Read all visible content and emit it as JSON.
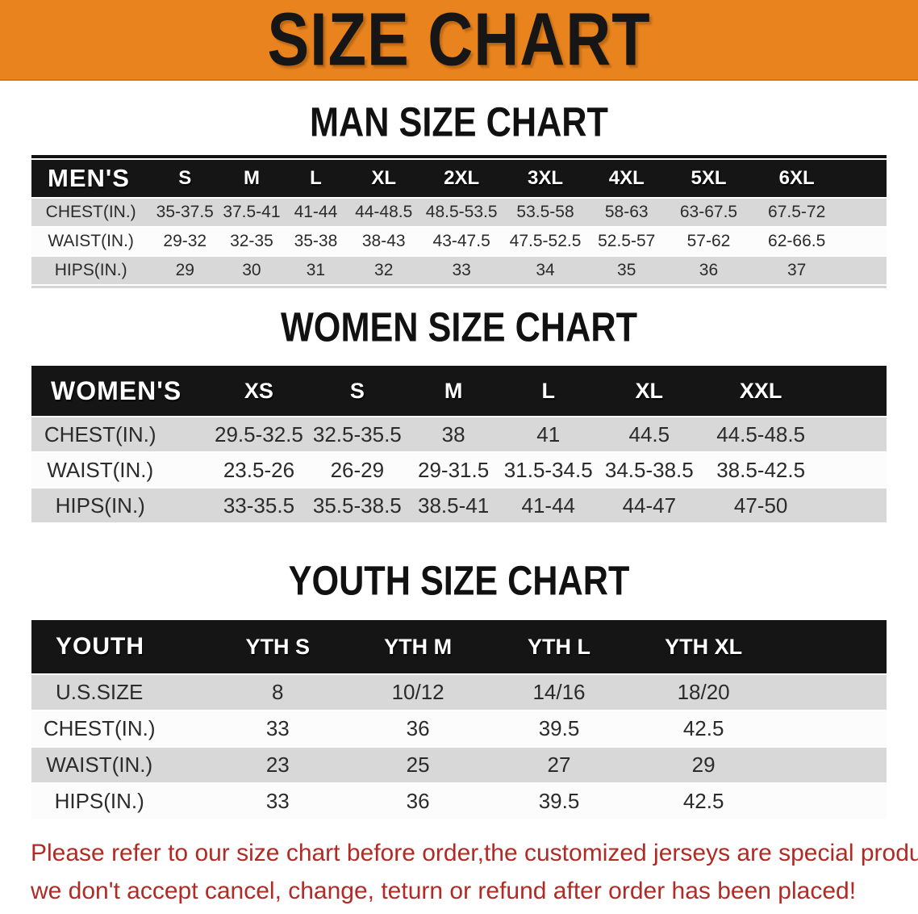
{
  "banner": {
    "title": "SIZE CHART",
    "bg_color": "#E8831E",
    "text_color": "#161616"
  },
  "chart_data": [
    {
      "type": "table",
      "title": "MAN SIZE CHART",
      "header_label": "MEN'S",
      "columns": [
        "S",
        "M",
        "L",
        "XL",
        "2XL",
        "3XL",
        "4XL",
        "5XL",
        "6XL"
      ],
      "rows": [
        {
          "label": "CHEST(IN.)",
          "values": [
            "35-37.5",
            "37.5-41",
            "41-44",
            "44-48.5",
            "48.5-53.5",
            "53.5-58",
            "58-63",
            "63-67.5",
            "67.5-72"
          ]
        },
        {
          "label": "WAIST(IN.)",
          "values": [
            "29-32",
            "32-35",
            "35-38",
            "38-43",
            "43-47.5",
            "47.5-52.5",
            "52.5-57",
            "57-62",
            "62-66.5"
          ]
        },
        {
          "label": "HIPS(IN.)",
          "values": [
            "29",
            "30",
            "31",
            "32",
            "33",
            "34",
            "35",
            "36",
            "37"
          ]
        }
      ]
    },
    {
      "type": "table",
      "title": "WOMEN SIZE CHART",
      "header_label": "WOMEN'S",
      "columns": [
        "XS",
        "S",
        "M",
        "L",
        "XL",
        "XXL"
      ],
      "rows": [
        {
          "label": "CHEST(IN.)",
          "values": [
            "29.5-32.5",
            "32.5-35.5",
            "38",
            "41",
            "44.5",
            "44.5-48.5"
          ]
        },
        {
          "label": "WAIST(IN.)",
          "values": [
            "23.5-26",
            "26-29",
            "29-31.5",
            "31.5-34.5",
            "34.5-38.5",
            "38.5-42.5"
          ]
        },
        {
          "label": "HIPS(IN.)",
          "values": [
            "33-35.5",
            "35.5-38.5",
            "38.5-41",
            "41-44",
            "44-47",
            "47-50"
          ]
        }
      ]
    },
    {
      "type": "table",
      "title": "YOUTH SIZE CHART",
      "header_label": "YOUTH",
      "columns": [
        "YTH S",
        "YTH M",
        "YTH L",
        "YTH XL"
      ],
      "rows": [
        {
          "label": "U.S.SIZE",
          "values": [
            "8",
            "10/12",
            "14/16",
            "18/20"
          ]
        },
        {
          "label": "CHEST(IN.)",
          "values": [
            "33",
            "36",
            "39.5",
            "42.5"
          ]
        },
        {
          "label": "WAIST(IN.)",
          "values": [
            "23",
            "25",
            "27",
            "29"
          ]
        },
        {
          "label": "HIPS(IN.)",
          "values": [
            "33",
            "36",
            "39.5",
            "42.5"
          ]
        }
      ]
    }
  ],
  "footer": {
    "line1": "Please refer to our size chart before order,the customized jerseys are special products,",
    "line2": "we don't accept cancel, change, teturn or refund after order has been placed!",
    "text_color": "#B02B25"
  },
  "colors": {
    "banner_orange": "#E8831E",
    "table_header_black": "#151515",
    "stripe_gray": "#D8D8D8",
    "stripe_white": "#FCFCFC",
    "disclaimer_red": "#B02B25"
  }
}
